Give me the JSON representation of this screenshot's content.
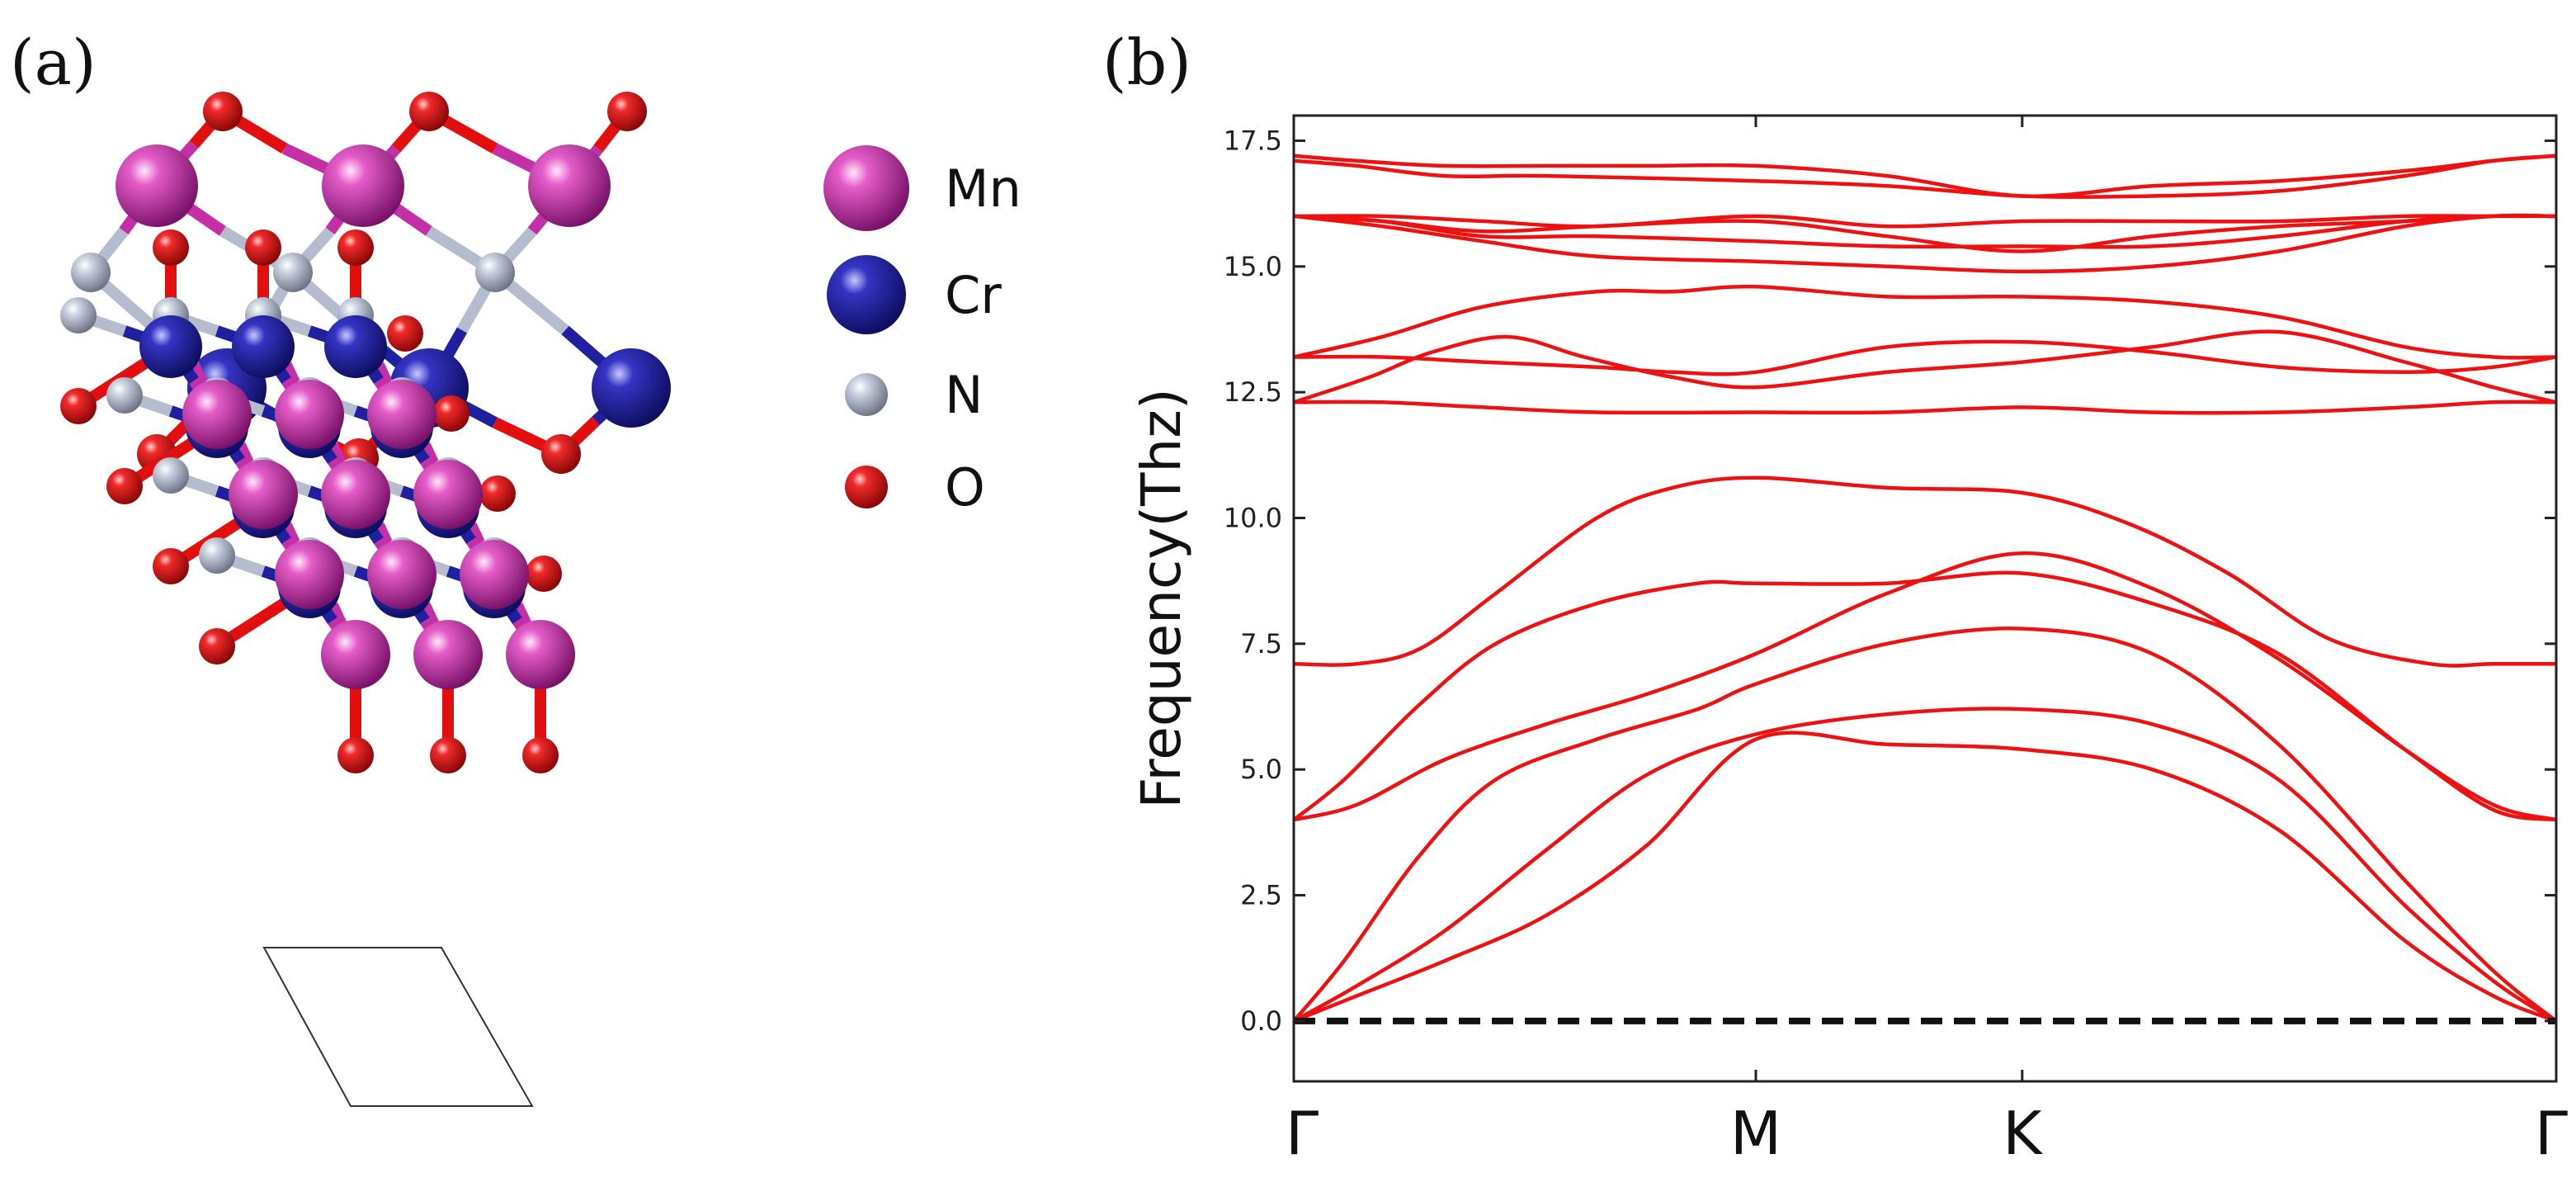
{
  "panels": {
    "a_label": "(a)",
    "b_label": "(b)"
  },
  "legend": [
    {
      "element": "Mn",
      "color": "#c42fa8"
    },
    {
      "element": "Cr",
      "color": "#1f1fa0"
    },
    {
      "element": "N",
      "color": "#b4bccd"
    },
    {
      "element": "O",
      "color": "#e30e0e"
    }
  ],
  "chart_data": {
    "type": "line",
    "title": "",
    "xlabel": "",
    "ylabel": "Frequency(Thz)",
    "ylim": [
      -1.2,
      18.0
    ],
    "yticks": [
      0.0,
      2.5,
      5.0,
      7.5,
      10.0,
      12.5,
      15.0,
      17.5
    ],
    "ytick_labels": [
      "0.0",
      "2.5",
      "5.0",
      "7.5",
      "10.0",
      "12.5",
      "15.0",
      "17.5"
    ],
    "xlim": [
      0,
      1
    ],
    "high_symmetry_points": [
      {
        "label": "Γ",
        "x": 0.0
      },
      {
        "label": "M",
        "x": 0.366
      },
      {
        "label": "K",
        "x": 0.577
      },
      {
        "label": "Γ",
        "x": 1.0
      }
    ],
    "line_color": "#ee1111",
    "zero_line": {
      "y": 0.0,
      "style": "dashed",
      "color": "#111111"
    },
    "series": [
      {
        "name": "band-1",
        "x": [
          0,
          0.05,
          0.12,
          0.2,
          0.28,
          0.366,
          0.47,
          0.577,
          0.68,
          0.78,
          0.88,
          0.95,
          1.0
        ],
        "y": [
          0,
          0.5,
          1.2,
          2.1,
          3.5,
          5.6,
          5.5,
          5.4,
          5.0,
          3.8,
          1.6,
          0.5,
          0
        ]
      },
      {
        "name": "band-2",
        "x": [
          0,
          0.05,
          0.12,
          0.2,
          0.28,
          0.366,
          0.47,
          0.577,
          0.68,
          0.78,
          0.88,
          0.95,
          1.0
        ],
        "y": [
          0,
          0.7,
          1.8,
          3.4,
          4.9,
          5.7,
          6.1,
          6.2,
          5.9,
          4.8,
          2.3,
          0.8,
          0
        ]
      },
      {
        "name": "band-3",
        "x": [
          0,
          0.04,
          0.1,
          0.16,
          0.24,
          0.32,
          0.366,
          0.47,
          0.577,
          0.68,
          0.78,
          0.88,
          0.95,
          1.0
        ],
        "y": [
          0,
          1.2,
          3.3,
          4.8,
          5.6,
          6.2,
          6.7,
          7.5,
          7.8,
          7.3,
          5.5,
          2.8,
          1.0,
          0
        ]
      },
      {
        "name": "band-4",
        "x": [
          0,
          0.05,
          0.12,
          0.2,
          0.28,
          0.366,
          0.47,
          0.577,
          0.68,
          0.78,
          0.88,
          0.95,
          1.0
        ],
        "y": [
          4.0,
          4.3,
          5.2,
          5.9,
          6.5,
          7.3,
          8.5,
          9.3,
          8.6,
          7.2,
          5.4,
          4.3,
          4.0
        ]
      },
      {
        "name": "band-5",
        "x": [
          0,
          0.04,
          0.1,
          0.16,
          0.24,
          0.32,
          0.366,
          0.47,
          0.577,
          0.68,
          0.78,
          0.88,
          0.95,
          1.0
        ],
        "y": [
          4.0,
          4.8,
          6.3,
          7.5,
          8.3,
          8.7,
          8.7,
          8.7,
          8.9,
          8.3,
          7.3,
          5.4,
          4.2,
          4.0
        ]
      },
      {
        "name": "band-6",
        "x": [
          0,
          0.05,
          0.1,
          0.16,
          0.24,
          0.3,
          0.366,
          0.47,
          0.577,
          0.66,
          0.74,
          0.82,
          0.9,
          0.95,
          1.0
        ],
        "y": [
          7.1,
          7.1,
          7.4,
          8.5,
          10.0,
          10.6,
          10.8,
          10.6,
          10.5,
          9.9,
          8.9,
          7.6,
          7.1,
          7.1,
          7.1
        ]
      },
      {
        "name": "band-7",
        "x": [
          0,
          0.07,
          0.15,
          0.24,
          0.366,
          0.47,
          0.577,
          0.68,
          0.78,
          0.88,
          0.95,
          1.0
        ],
        "y": [
          12.3,
          12.3,
          12.2,
          12.1,
          12.1,
          12.1,
          12.2,
          12.1,
          12.1,
          12.2,
          12.3,
          12.3
        ]
      },
      {
        "name": "band-8",
        "x": [
          0,
          0.06,
          0.11,
          0.17,
          0.23,
          0.3,
          0.366,
          0.47,
          0.577,
          0.68,
          0.78,
          0.88,
          0.95,
          1.0
        ],
        "y": [
          12.3,
          12.8,
          13.3,
          13.6,
          13.2,
          12.8,
          12.6,
          12.9,
          13.1,
          13.4,
          13.7,
          13.1,
          12.6,
          12.3
        ]
      },
      {
        "name": "band-9",
        "x": [
          0,
          0.07,
          0.15,
          0.24,
          0.3,
          0.366,
          0.47,
          0.577,
          0.68,
          0.78,
          0.88,
          0.95,
          1.0
        ],
        "y": [
          13.2,
          13.2,
          13.1,
          13.0,
          12.9,
          12.9,
          13.4,
          13.5,
          13.3,
          13.0,
          12.9,
          13.0,
          13.2
        ]
      },
      {
        "name": "band-10",
        "x": [
          0,
          0.07,
          0.15,
          0.24,
          0.3,
          0.366,
          0.47,
          0.577,
          0.68,
          0.78,
          0.88,
          0.95,
          1.0
        ],
        "y": [
          13.2,
          13.6,
          14.2,
          14.5,
          14.5,
          14.6,
          14.4,
          14.4,
          14.3,
          14.0,
          13.4,
          13.2,
          13.2
        ]
      },
      {
        "name": "band-11",
        "x": [
          0,
          0.07,
          0.15,
          0.24,
          0.366,
          0.47,
          0.577,
          0.68,
          0.78,
          0.88,
          0.95,
          1.0
        ],
        "y": [
          16.0,
          15.8,
          15.5,
          15.2,
          15.1,
          15.0,
          14.9,
          15.0,
          15.3,
          15.8,
          16.0,
          16.0
        ]
      },
      {
        "name": "band-12",
        "x": [
          0,
          0.07,
          0.15,
          0.24,
          0.366,
          0.47,
          0.577,
          0.68,
          0.78,
          0.88,
          0.95,
          1.0
        ],
        "y": [
          16.0,
          15.9,
          15.6,
          15.6,
          15.5,
          15.4,
          15.4,
          15.4,
          15.6,
          15.9,
          16.0,
          16.0
        ]
      },
      {
        "name": "band-13",
        "x": [
          0,
          0.07,
          0.15,
          0.24,
          0.366,
          0.47,
          0.577,
          0.68,
          0.78,
          0.88,
          0.95,
          1.0
        ],
        "y": [
          16.0,
          15.9,
          15.7,
          15.8,
          15.9,
          15.6,
          15.3,
          15.6,
          15.8,
          15.9,
          16.0,
          16.0
        ]
      },
      {
        "name": "band-14",
        "x": [
          0,
          0.07,
          0.15,
          0.24,
          0.366,
          0.47,
          0.577,
          0.68,
          0.78,
          0.88,
          0.95,
          1.0
        ],
        "y": [
          16.0,
          16.0,
          15.9,
          15.8,
          16.0,
          15.8,
          15.9,
          15.9,
          15.9,
          16.0,
          16.0,
          16.0
        ]
      },
      {
        "name": "band-15",
        "x": [
          0,
          0.05,
          0.12,
          0.2,
          0.366,
          0.47,
          0.577,
          0.68,
          0.78,
          0.88,
          0.95,
          1.0
        ],
        "y": [
          17.1,
          17.0,
          16.8,
          16.8,
          16.7,
          16.6,
          16.4,
          16.4,
          16.5,
          16.8,
          17.1,
          17.2
        ]
      },
      {
        "name": "band-16",
        "x": [
          0,
          0.05,
          0.12,
          0.2,
          0.28,
          0.366,
          0.47,
          0.577,
          0.68,
          0.78,
          0.88,
          0.95,
          1.0
        ],
        "y": [
          17.2,
          17.1,
          17.0,
          17.0,
          17.0,
          17.0,
          16.8,
          16.4,
          16.6,
          16.7,
          16.9,
          17.1,
          17.2
        ]
      }
    ]
  }
}
